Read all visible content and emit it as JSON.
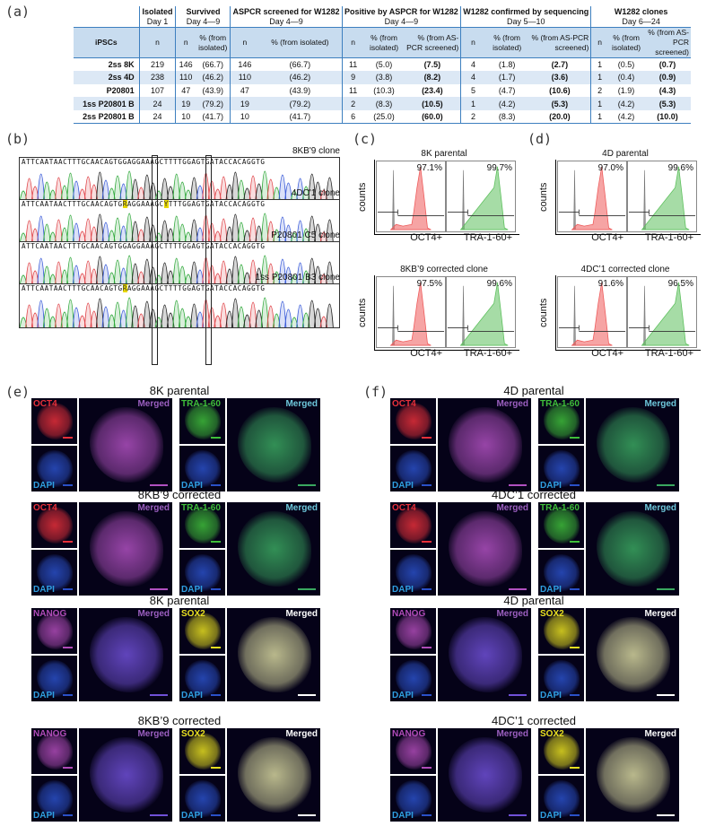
{
  "panels": {
    "a": "(a)",
    "b": "(b)",
    "c": "(c)",
    "d": "(d)",
    "e": "(e)",
    "f": "(f)"
  },
  "table": {
    "groups": [
      {
        "title": "Isolated",
        "sub": "Day 1"
      },
      {
        "title": "Survived",
        "sub": "Day 4—9"
      },
      {
        "title": "ASPCR screened for W1282",
        "sub": "Day 4—9"
      },
      {
        "title": "Positive by ASPCR for W1282",
        "sub": "Day 4—9"
      },
      {
        "title": "W1282 confirmed by sequencing",
        "sub": "Day 5—10"
      },
      {
        "title": "W1282 clones",
        "sub": "Day 6—24"
      }
    ],
    "headers": {
      "ipscs": "iPSCs",
      "n": "n",
      "pct_isolated_short": "% (from isolated)",
      "pct_isolated_long": "% (from isolated)",
      "pct_aspcr": "% (from AS-PCR screened)"
    },
    "rows": [
      {
        "name": "2ss 8K",
        "iso": "219",
        "surv_n": "146",
        "surv_p": "(66.7)",
        "scr_n": "146",
        "scr_p": "(66.7)",
        "pos_n": "11",
        "pos_pi": "(5.0)",
        "pos_ps": "(7.5)",
        "seq_n": "4",
        "seq_pi": "(1.8)",
        "seq_ps": "(2.7)",
        "cl_n": "1",
        "cl_pi": "(0.5)",
        "cl_ps": "(0.7)"
      },
      {
        "name": "2ss 4D",
        "iso": "238",
        "surv_n": "110",
        "surv_p": "(46.2)",
        "scr_n": "110",
        "scr_p": "(46.2)",
        "pos_n": "9",
        "pos_pi": "(3.8)",
        "pos_ps": "(8.2)",
        "seq_n": "4",
        "seq_pi": "(1.7)",
        "seq_ps": "(3.6)",
        "cl_n": "1",
        "cl_pi": "(0.4)",
        "cl_ps": "(0.9)"
      },
      {
        "name": "P20801",
        "iso": "107",
        "surv_n": "47",
        "surv_p": "(43.9)",
        "scr_n": "47",
        "scr_p": "(43.9)",
        "pos_n": "11",
        "pos_pi": "(10.3)",
        "pos_ps": "(23.4)",
        "seq_n": "5",
        "seq_pi": "(4.7)",
        "seq_ps": "(10.6)",
        "cl_n": "2",
        "cl_pi": "(1.9)",
        "cl_ps": "(4.3)"
      },
      {
        "name": "1ss P20801 B",
        "iso": "24",
        "surv_n": "19",
        "surv_p": "(79.2)",
        "scr_n": "19",
        "scr_p": "(79.2)",
        "pos_n": "2",
        "pos_pi": "(8.3)",
        "pos_ps": "(10.5)",
        "seq_n": "1",
        "seq_pi": "(4.2)",
        "seq_ps": "(5.3)",
        "cl_n": "1",
        "cl_pi": "(4.2)",
        "cl_ps": "(5.3)"
      },
      {
        "name": "2ss P20801 B",
        "iso": "24",
        "surv_n": "10",
        "surv_p": "(41.7)",
        "scr_n": "10",
        "scr_p": "(41.7)",
        "pos_n": "6",
        "pos_pi": "(25.0)",
        "pos_ps": "(60.0)",
        "seq_n": "2",
        "seq_pi": "(8.3)",
        "seq_ps": "(20.0)",
        "cl_n": "1",
        "cl_pi": "(4.2)",
        "cl_ps": "(10.0)"
      }
    ]
  },
  "chromatograms": [
    {
      "title": "8KB'9 clone",
      "seq_a": "ATTCAATAACTTTGCAACAGTG",
      "mut1": "G",
      "seq_b": "AGGAAAGC",
      "mut2": "T",
      "seq_c": "TTTGGAGTGATACCACAGGTG",
      "hl1": false,
      "hl2": false
    },
    {
      "title": "4DC'1 clone",
      "seq_a": "ATTCAATAACTTTGCAACAGTG",
      "mut1": "R",
      "seq_b": "AGGAAAGC",
      "mut2": "Y",
      "seq_c": "TTTGGAGTGATACCACAGGTG",
      "hl1": true,
      "hl2": true
    },
    {
      "title": "P20801 C5 clone",
      "seq_a": "ATTCAATAACTTTGCAACAGTG",
      "mut1": "G",
      "seq_b": "AGGAAAGC",
      "mut2": "T",
      "seq_c": "TTTGGAGTGATACCACAGGTG",
      "hl1": false,
      "hl2": false
    },
    {
      "title": "1ss P20801 B3 clone",
      "seq_a": "ATTCAATAACTTTGCAACAGTG",
      "mut1": "R",
      "seq_b": "AGGAAAGC",
      "mut2": "T",
      "seq_c": "TTTGGAGTGATACCACAGGTG",
      "hl1": true,
      "hl2": false
    }
  ],
  "flow": {
    "ylabel": "counts",
    "x_oct4": "OCT4+",
    "x_tra": "TRA-1-60+",
    "c_top": {
      "title": "8K parental",
      "oct4_pct": "97.1%",
      "tra_pct": "99.7%"
    },
    "c_bottom": {
      "title": "8KB’9 corrected clone",
      "oct4_pct": "97.5%",
      "tra_pct": "99.6%"
    },
    "d_top": {
      "title": "4D parental",
      "oct4_pct": "97.0%",
      "tra_pct": "99.6%"
    },
    "d_bottom": {
      "title": "4DC’1 corrected clone",
      "oct4_pct": "91.6%",
      "tra_pct": "96.5%"
    }
  },
  "if": {
    "e": {
      "rows": [
        {
          "title": "8K parental"
        },
        {
          "title": "8KB’9   corrected"
        },
        {
          "title": "8K parental"
        },
        {
          "title": "8KB’9   corrected"
        }
      ]
    },
    "f": {
      "rows": [
        {
          "title": "4D parental"
        },
        {
          "title": "4DC’1   corrected"
        },
        {
          "title": "4D parental"
        },
        {
          "title": "4DC’1   corrected"
        }
      ]
    },
    "labels": {
      "oct4": "OCT4",
      "tra": "TRA-1-60",
      "nanog": "NANOG",
      "sox2": "SOX2",
      "dapi": "DAPI",
      "merged": "Merged"
    },
    "colors": {
      "oct4": "#e8303a",
      "tra": "#3fbf3a",
      "nanog": "#b04cb8",
      "sox2": "#e8e020",
      "dapi": "#2f9fe0",
      "merged_pink": "#9b5fc0",
      "merged_cyan": "#6ec8dc",
      "merged_white": "#ffffff",
      "table_accent": "#3d7fbf",
      "table_header_bg": "#c8dcef",
      "table_alt_row": "#dce8f5"
    }
  }
}
